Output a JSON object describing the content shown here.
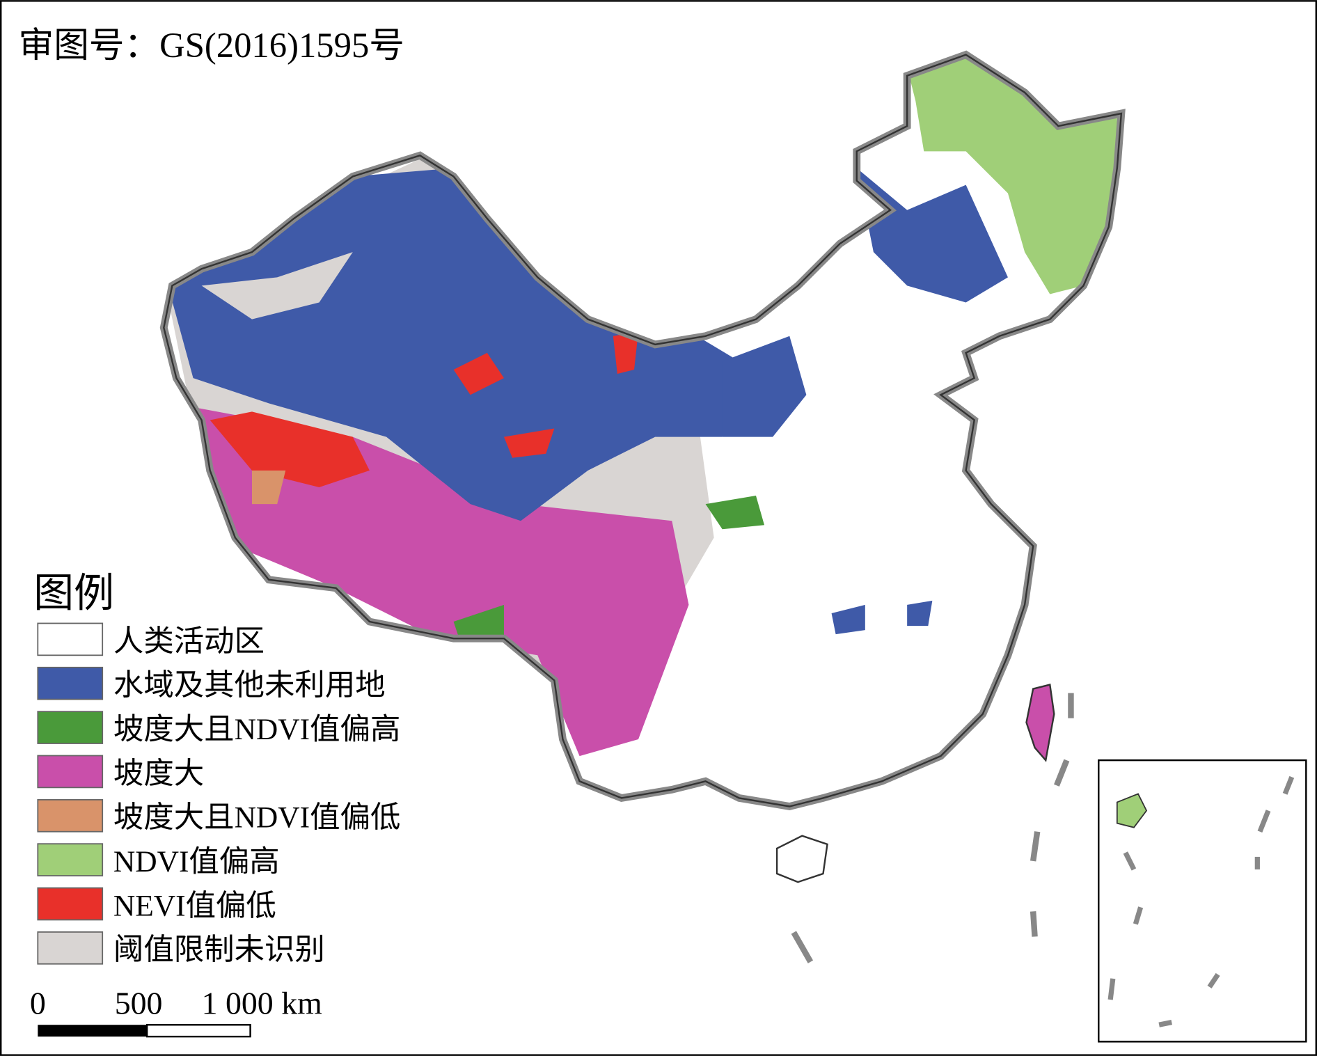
{
  "title": "审图号：GS(2016)1595号",
  "legend": {
    "title": "图例",
    "items": [
      {
        "label": "人类活动区",
        "color": "#ffffff"
      },
      {
        "label": "水域及其他未利用地",
        "color": "#3f5aa8"
      },
      {
        "label": "坡度大且NDVI值偏高",
        "color": "#4a9a3a"
      },
      {
        "label": "坡度大",
        "color": "#c94faa"
      },
      {
        "label": "坡度大且NDVI值偏低",
        "color": "#d9936a"
      },
      {
        "label": "NDVI值偏高",
        "color": "#a0cf78"
      },
      {
        "label": "NEVI值偏低",
        "color": "#e8302a"
      },
      {
        "label": "阈值限制未识别",
        "color": "#d9d5d3"
      }
    ]
  },
  "scale_bar": {
    "labels": [
      "0",
      "500",
      "1 000 km"
    ]
  }
}
